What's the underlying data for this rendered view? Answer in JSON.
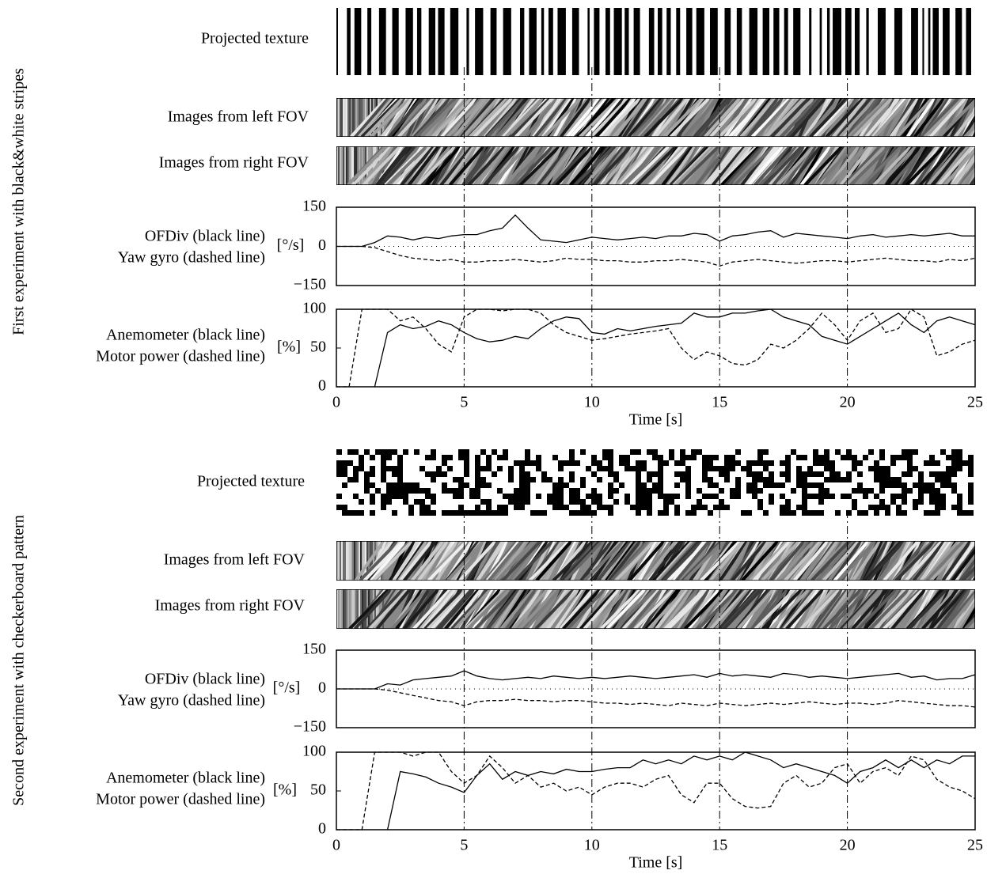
{
  "experiments": [
    {
      "title": "First experiment with black&white stripes",
      "texture_label": "Projected texture",
      "left_label": "Images from left FOV",
      "right_label": "Images from right FOV"
    },
    {
      "title": "Second experiment with checkerboard pattern",
      "texture_label": "Projected texture",
      "left_label": "Images from left FOV",
      "right_label": "Images from right FOV"
    }
  ],
  "chart_data": [
    {
      "type": "line",
      "ylabel": "[°/s]",
      "xlim": [
        0,
        25
      ],
      "ylim": [
        -150,
        150
      ],
      "yticks": [
        {
          "value": -150,
          "label": "−150"
        },
        0,
        150
      ],
      "x": [
        0,
        0.5,
        1,
        1.5,
        2,
        2.5,
        3,
        3.5,
        4,
        4.5,
        5,
        5.5,
        6,
        6.5,
        7,
        7.5,
        8,
        8.5,
        9,
        9.5,
        10,
        10.5,
        11,
        11.5,
        12,
        12.5,
        13,
        13.5,
        14,
        14.5,
        15,
        15.5,
        16,
        16.5,
        17,
        17.5,
        18,
        18.5,
        19,
        19.5,
        20,
        20.5,
        21,
        21.5,
        22,
        22.5,
        23,
        23.5,
        24,
        24.5,
        25
      ],
      "series": [
        {
          "name": "OFDiv (black line)",
          "color": "#000000",
          "style": "solid",
          "values": [
            0,
            0,
            0,
            15,
            40,
            35,
            25,
            35,
            30,
            40,
            45,
            45,
            60,
            70,
            120,
            70,
            25,
            20,
            15,
            25,
            35,
            30,
            25,
            30,
            35,
            30,
            40,
            40,
            50,
            45,
            20,
            40,
            45,
            55,
            60,
            35,
            50,
            45,
            40,
            35,
            30,
            40,
            45,
            35,
            40,
            45,
            40,
            45,
            50,
            40,
            40
          ]
        },
        {
          "name": "Yaw gyro (dashed line)",
          "color": "#000000",
          "style": "dashed",
          "values": [
            0,
            0,
            0,
            -5,
            -20,
            -35,
            -45,
            -50,
            -55,
            -50,
            -60,
            -60,
            -55,
            -55,
            -50,
            -55,
            -60,
            -55,
            -45,
            -50,
            -50,
            -55,
            -55,
            -60,
            -60,
            -55,
            -55,
            -50,
            -55,
            -60,
            -75,
            -60,
            -55,
            -50,
            -55,
            -60,
            -65,
            -60,
            -55,
            -55,
            -60,
            -55,
            -50,
            -45,
            -50,
            -55,
            -55,
            -60,
            -50,
            -55,
            -45
          ]
        }
      ]
    },
    {
      "type": "line",
      "ylabel": "[%]",
      "xlabel": "Time [s]",
      "xlim": [
        0,
        25
      ],
      "xticks": [
        0,
        5,
        10,
        15,
        20,
        25
      ],
      "ylim": [
        0,
        100
      ],
      "yticks": [
        0,
        50,
        100
      ],
      "x": [
        0,
        0.5,
        1,
        1.5,
        2,
        2.5,
        3,
        3.5,
        4,
        4.5,
        5,
        5.5,
        6,
        6.5,
        7,
        7.5,
        8,
        8.5,
        9,
        9.5,
        10,
        10.5,
        11,
        11.5,
        12,
        12.5,
        13,
        13.5,
        14,
        14.5,
        15,
        15.5,
        16,
        16.5,
        17,
        17.5,
        18,
        18.5,
        19,
        19.5,
        20,
        20.5,
        21,
        21.5,
        22,
        22.5,
        23,
        23.5,
        24,
        24.5,
        25
      ],
      "series": [
        {
          "name": "Anemometer (black line)",
          "color": "#000000",
          "style": "solid",
          "values": [
            null,
            null,
            null,
            0,
            70,
            80,
            75,
            78,
            85,
            80,
            70,
            62,
            58,
            60,
            65,
            62,
            75,
            85,
            90,
            88,
            70,
            68,
            75,
            72,
            75,
            78,
            80,
            82,
            95,
            90,
            90,
            95,
            95,
            98,
            100,
            90,
            85,
            80,
            65,
            60,
            55,
            65,
            75,
            85,
            95,
            80,
            70,
            85,
            90,
            85,
            80
          ]
        },
        {
          "name": "Motor power (dashed line)",
          "color": "#000000",
          "style": "dashed",
          "values": [
            0,
            0,
            100,
            100,
            100,
            85,
            90,
            75,
            55,
            45,
            90,
            100,
            100,
            98,
            100,
            100,
            95,
            80,
            70,
            65,
            60,
            62,
            65,
            68,
            70,
            72,
            75,
            50,
            35,
            45,
            40,
            30,
            28,
            35,
            55,
            50,
            60,
            75,
            95,
            80,
            60,
            85,
            95,
            70,
            75,
            100,
            90,
            40,
            45,
            55,
            60
          ]
        }
      ]
    },
    {
      "type": "line",
      "ylabel": "[°/s]",
      "xlim": [
        0,
        25
      ],
      "ylim": [
        -150,
        150
      ],
      "yticks": [
        {
          "value": -150,
          "label": "−150"
        },
        0,
        150
      ],
      "x": [
        0,
        0.5,
        1,
        1.5,
        2,
        2.5,
        3,
        3.5,
        4,
        4.5,
        5,
        5.5,
        6,
        6.5,
        7,
        7.5,
        8,
        8.5,
        9,
        9.5,
        10,
        10.5,
        11,
        11.5,
        12,
        12.5,
        13,
        13.5,
        14,
        14.5,
        15,
        15.5,
        16,
        16.5,
        17,
        17.5,
        18,
        18.5,
        19,
        19.5,
        20,
        20.5,
        21,
        21.5,
        22,
        22.5,
        23,
        23.5,
        24,
        24.5,
        25
      ],
      "series": [
        {
          "name": "OFDiv (black line)",
          "color": "#000000",
          "style": "solid",
          "values": [
            0,
            0,
            0,
            0,
            20,
            15,
            35,
            40,
            45,
            50,
            70,
            50,
            40,
            35,
            40,
            45,
            40,
            50,
            45,
            40,
            45,
            40,
            45,
            50,
            45,
            40,
            45,
            50,
            55,
            45,
            60,
            50,
            55,
            50,
            45,
            60,
            55,
            45,
            50,
            45,
            40,
            45,
            50,
            55,
            60,
            45,
            50,
            35,
            40,
            40,
            55
          ]
        },
        {
          "name": "Yaw gyro (dashed line)",
          "color": "#000000",
          "style": "dashed",
          "values": [
            0,
            0,
            0,
            0,
            -5,
            -15,
            -25,
            -35,
            -45,
            -50,
            -65,
            -50,
            -45,
            -45,
            -40,
            -45,
            -45,
            -50,
            -45,
            -45,
            -50,
            -55,
            -55,
            -60,
            -55,
            -60,
            -65,
            -55,
            -60,
            -65,
            -55,
            -60,
            -65,
            -60,
            -55,
            -60,
            -55,
            -50,
            -55,
            -60,
            -55,
            -55,
            -60,
            -55,
            -45,
            -50,
            -55,
            -60,
            -65,
            -65,
            -70
          ]
        }
      ]
    },
    {
      "type": "line",
      "ylabel": "[%]",
      "xlabel": "Time [s]",
      "xlim": [
        0,
        25
      ],
      "xticks": [
        0,
        5,
        10,
        15,
        20,
        25
      ],
      "ylim": [
        0,
        100
      ],
      "yticks": [
        0,
        50,
        100
      ],
      "x": [
        0,
        0.5,
        1,
        1.5,
        2,
        2.5,
        3,
        3.5,
        4,
        4.5,
        5,
        5.5,
        6,
        6.5,
        7,
        7.5,
        8,
        8.5,
        9,
        9.5,
        10,
        10.5,
        11,
        11.5,
        12,
        12.5,
        13,
        13.5,
        14,
        14.5,
        15,
        15.5,
        16,
        16.5,
        17,
        17.5,
        18,
        18.5,
        19,
        19.5,
        20,
        20.5,
        21,
        21.5,
        22,
        22.5,
        23,
        23.5,
        24,
        24.5,
        25
      ],
      "series": [
        {
          "name": "Anemometer (black line)",
          "color": "#000000",
          "style": "solid",
          "values": [
            null,
            null,
            null,
            null,
            0,
            75,
            72,
            68,
            60,
            55,
            48,
            70,
            85,
            65,
            75,
            70,
            75,
            72,
            78,
            75,
            75,
            78,
            80,
            80,
            90,
            85,
            90,
            85,
            95,
            90,
            95,
            90,
            100,
            95,
            90,
            80,
            85,
            80,
            75,
            70,
            60,
            75,
            80,
            90,
            80,
            90,
            80,
            90,
            85,
            95,
            95
          ]
        },
        {
          "name": "Motor power (dashed line)",
          "color": "#000000",
          "style": "dashed",
          "values": [
            0,
            0,
            0,
            100,
            100,
            100,
            95,
            100,
            100,
            75,
            60,
            70,
            95,
            80,
            60,
            70,
            55,
            60,
            50,
            55,
            45,
            55,
            60,
            60,
            55,
            65,
            70,
            45,
            35,
            60,
            60,
            40,
            30,
            28,
            30,
            60,
            70,
            55,
            60,
            80,
            85,
            60,
            75,
            80,
            70,
            95,
            90,
            65,
            55,
            50,
            40
          ]
        }
      ]
    }
  ]
}
